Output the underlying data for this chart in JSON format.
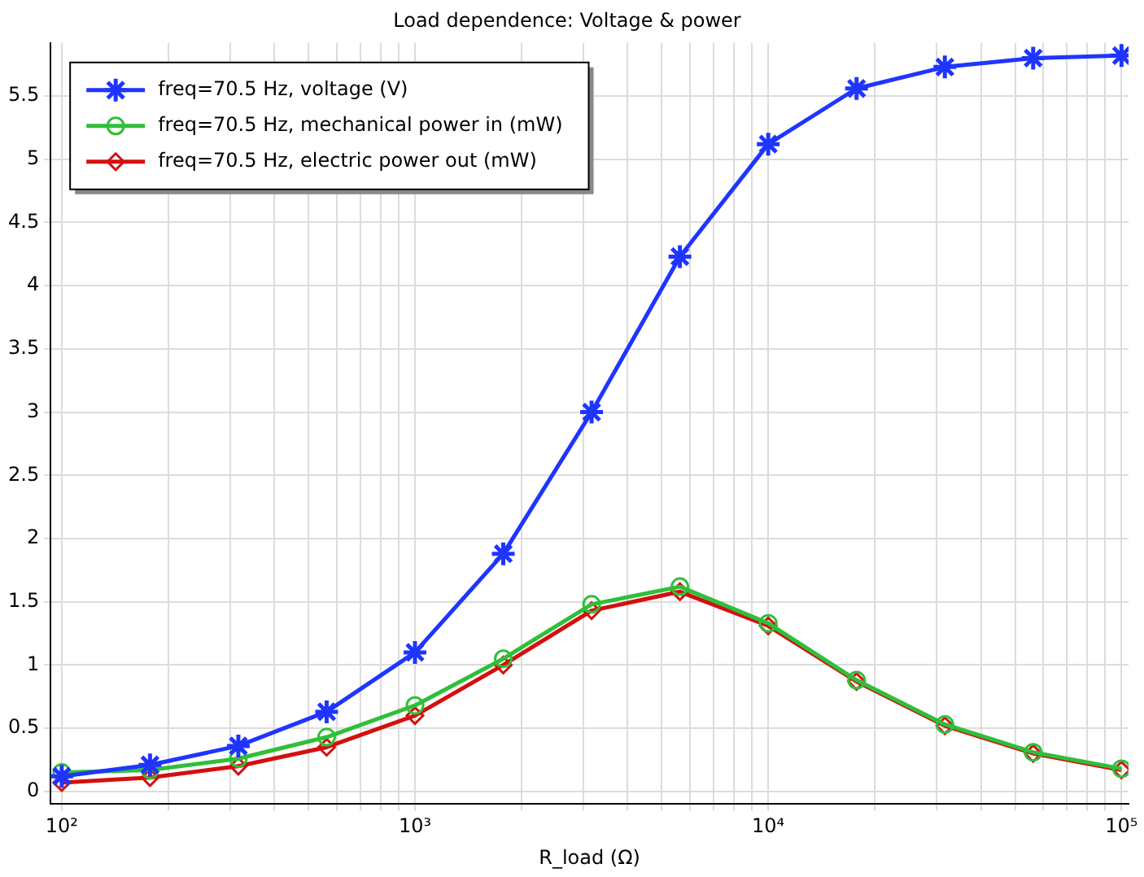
{
  "chart_data": {
    "type": "line",
    "title": "Load dependence: Voltage & power",
    "xlabel": "R_load (Ω)",
    "log": "x",
    "x": [
      100,
      177.8,
      316.2,
      562.3,
      1000,
      1778,
      3162,
      5623,
      10000,
      17783,
      31623,
      56234,
      100000
    ],
    "series": [
      {
        "name": "freq=70.5 Hz, voltage (V)",
        "color": "#1f35ff",
        "marker": "cross",
        "values": [
          0.12,
          0.21,
          0.36,
          0.63,
          1.1,
          1.88,
          3.0,
          4.23,
          5.12,
          5.56,
          5.73,
          5.8,
          5.82
        ]
      },
      {
        "name": "freq=70.5 Hz, mechanical power in (mW)",
        "color": "#2fbf3a",
        "marker": "circle",
        "values": [
          0.15,
          0.17,
          0.26,
          0.43,
          0.68,
          1.05,
          1.48,
          1.62,
          1.33,
          0.88,
          0.53,
          0.31,
          0.18
        ]
      },
      {
        "name": "freq=70.5 Hz, electric power out (mW)",
        "color": "#d40f0f",
        "marker": "diamond",
        "values": [
          0.07,
          0.11,
          0.2,
          0.35,
          0.6,
          1.0,
          1.43,
          1.58,
          1.31,
          0.87,
          0.52,
          0.3,
          0.17
        ]
      }
    ],
    "xlim": [
      93,
      104700
    ],
    "xticks": [
      {
        "value": 100,
        "label": "10²"
      },
      {
        "value": 200,
        "label": null
      },
      {
        "value": 300,
        "label": null
      },
      {
        "value": 400,
        "label": null
      },
      {
        "value": 500,
        "label": null
      },
      {
        "value": 600,
        "label": null
      },
      {
        "value": 700,
        "label": null
      },
      {
        "value": 800,
        "label": null
      },
      {
        "value": 900,
        "label": null
      },
      {
        "value": 1000,
        "label": "10³"
      },
      {
        "value": 2000,
        "label": null
      },
      {
        "value": 3000,
        "label": null
      },
      {
        "value": 4000,
        "label": null
      },
      {
        "value": 5000,
        "label": null
      },
      {
        "value": 6000,
        "label": null
      },
      {
        "value": 7000,
        "label": null
      },
      {
        "value": 8000,
        "label": null
      },
      {
        "value": 9000,
        "label": null
      },
      {
        "value": 10000,
        "label": "10⁴"
      },
      {
        "value": 20000,
        "label": null
      },
      {
        "value": 30000,
        "label": null
      },
      {
        "value": 40000,
        "label": null
      },
      {
        "value": 50000,
        "label": null
      },
      {
        "value": 60000,
        "label": null
      },
      {
        "value": 70000,
        "label": null
      },
      {
        "value": 80000,
        "label": null
      },
      {
        "value": 90000,
        "label": null
      },
      {
        "value": 100000,
        "label": "10⁵"
      }
    ],
    "ylim": [
      -0.1,
      5.92
    ],
    "yticks": [
      0,
      0.5,
      1,
      1.5,
      2,
      2.5,
      3,
      3.5,
      4,
      4.5,
      5,
      5.5
    ],
    "grid": true,
    "legend": "top left",
    "line_style": "solid"
  }
}
